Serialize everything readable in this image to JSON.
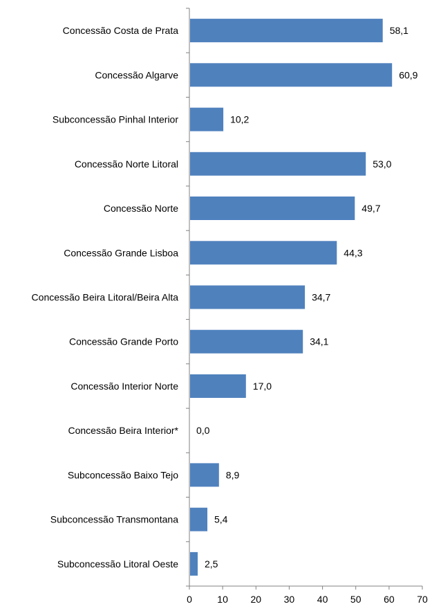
{
  "chart_data": {
    "type": "bar",
    "orientation": "horizontal",
    "categories": [
      "Concessão Costa de Prata",
      "Concessão Algarve",
      "Subconcessão Pinhal Interior",
      "Concessão Norte Litoral",
      "Concessão Norte",
      "Concessão Grande Lisboa",
      "Concessão Beira Litoral/Beira Alta",
      "Concessão Grande Porto",
      "Concessão Interior Norte",
      "Concessão Beira Interior*",
      "Subconcessão Baixo Tejo",
      "Subconcessão Transmontana",
      "Subconcessão Litoral Oeste"
    ],
    "values": [
      58.1,
      60.9,
      10.2,
      53.0,
      49.7,
      44.3,
      34.7,
      34.1,
      17.0,
      0.0,
      8.9,
      5.4,
      2.5
    ],
    "value_labels": [
      "58,1",
      "60,9",
      "10,2",
      "53,0",
      "49,7",
      "44,3",
      "34,7",
      "34,1",
      "17,0",
      "0,0",
      "8,9",
      "5,4",
      "2,5"
    ],
    "title": "",
    "xlabel": "",
    "ylabel": "",
    "xlim": [
      0,
      70
    ],
    "xticks": [
      0,
      10,
      20,
      30,
      40,
      50,
      60,
      70
    ],
    "xtick_labels": [
      "0",
      "10",
      "20",
      "30",
      "40",
      "50",
      "60",
      "70"
    ],
    "grid": false,
    "legend": "none",
    "bar_color": "#4f81bd",
    "axis_color": "#808080"
  }
}
